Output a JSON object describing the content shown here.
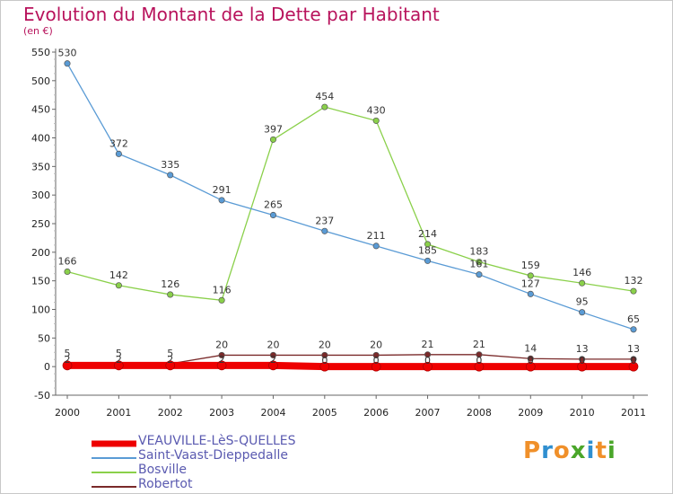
{
  "header": {
    "title": "Evolution du Montant de la Dette par Habitant",
    "subtitle": "(en €)"
  },
  "brand": {
    "letters": [
      "P",
      "r",
      "o",
      "x",
      "i",
      "t",
      "i"
    ],
    "colors": [
      "#f0902a",
      "#2f8fd0",
      "#f0902a",
      "#4aa62a",
      "#2f8fd0",
      "#f0902a",
      "#4aa62a"
    ]
  },
  "chart_data": {
    "type": "line",
    "title": "Evolution du Montant de la Dette par Habitant",
    "subtitle": "(en €)",
    "xlabel": "",
    "ylabel": "",
    "x": [
      "2000",
      "2001",
      "2002",
      "2003",
      "2004",
      "2005",
      "2006",
      "2007",
      "2008",
      "2009",
      "2010",
      "2011"
    ],
    "ylim": [
      -50,
      550
    ],
    "yticks": [
      -50,
      0,
      50,
      100,
      150,
      200,
      250,
      300,
      350,
      400,
      450,
      500,
      550
    ],
    "grid": false,
    "legend_position": "bottom-left",
    "series": [
      {
        "name": "VEAUVILLE-LèS-QUELLES",
        "color": "#ee0000",
        "values": [
          2,
          2,
          2,
          2,
          2,
          0,
          0,
          0,
          0,
          0,
          0,
          0
        ],
        "labels": [
          "2",
          "2",
          "2",
          "2",
          "2",
          "0",
          "0",
          "0",
          "0",
          "0",
          "0",
          "0"
        ],
        "show_labels": false,
        "thick": true
      },
      {
        "name": "Saint-Vaast-Dieppedalle",
        "color": "#5a9bd5",
        "values": [
          530,
          372,
          335,
          291,
          265,
          237,
          211,
          185,
          161,
          127,
          95,
          65
        ],
        "show_labels": true
      },
      {
        "name": "Bosville",
        "color": "#8ad04a",
        "values": [
          166,
          142,
          126,
          116,
          397,
          454,
          430,
          214,
          183,
          159,
          146,
          132
        ],
        "show_labels": true
      },
      {
        "name": "Robertot",
        "color": "#7a2a2a",
        "values": [
          5,
          5,
          5,
          20,
          20,
          20,
          20,
          21,
          21,
          14,
          13,
          13
        ],
        "labels": [
          "5",
          "5",
          "5",
          "20",
          "20",
          "20",
          "20",
          "21",
          "21",
          "14",
          "13",
          "13"
        ],
        "show_labels": true
      }
    ]
  }
}
